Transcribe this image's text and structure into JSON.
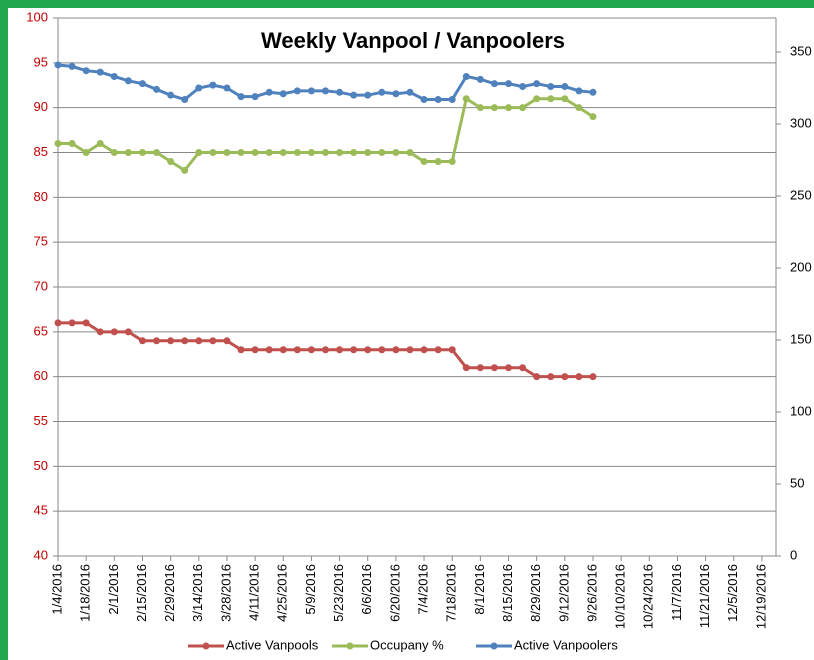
{
  "chart_data": {
    "type": "line",
    "title": "Weekly Vanpool / Vanpoolers",
    "categories": [
      "1/4/2016",
      null,
      "1/18/2016",
      null,
      "2/1/2016",
      null,
      "2/15/2016",
      null,
      "2/29/2016",
      null,
      "3/14/2016",
      null,
      "3/28/2016",
      null,
      "4/11/2016",
      null,
      "4/25/2016",
      null,
      "5/9/2016",
      null,
      "5/23/2016",
      null,
      "6/6/2016",
      null,
      "6/20/2016",
      null,
      "7/4/2016",
      null,
      "7/18/2016",
      null,
      "8/1/2016",
      null,
      "8/15/2016",
      null,
      "8/29/2016",
      null,
      "9/12/2016",
      null,
      "9/26/2016",
      null,
      "10/10/2016",
      null,
      "10/24/2016",
      null,
      "11/7/2016",
      null,
      "11/21/2016",
      null,
      "12/5/2016",
      null,
      "12/19/2016",
      null
    ],
    "series": [
      {
        "name": "Active Vanpools",
        "color": "#c0504d",
        "values": [
          66,
          66,
          66,
          65,
          65,
          65,
          64,
          64,
          64,
          64,
          64,
          64,
          64,
          63,
          63,
          63,
          63,
          63,
          63,
          63,
          63,
          63,
          63,
          63,
          63,
          63,
          63,
          63,
          63,
          61,
          61,
          61,
          61,
          61,
          60,
          60,
          60,
          60,
          60,
          null,
          null,
          null,
          null,
          null,
          null,
          null,
          null,
          null,
          null,
          null,
          null,
          null
        ]
      },
      {
        "name": "Occupany %",
        "color": "#9bbb59",
        "values": [
          86,
          86,
          85,
          86,
          85,
          85,
          85,
          85,
          84,
          83,
          85,
          85,
          85,
          85,
          85,
          85,
          85,
          85,
          85,
          85,
          85,
          85,
          85,
          85,
          85,
          85,
          84,
          84,
          84,
          91,
          90,
          90,
          90,
          90,
          91,
          91,
          91,
          90,
          89,
          null,
          null,
          null,
          null,
          null,
          null,
          null,
          null,
          null,
          null,
          null,
          null,
          null
        ]
      },
      {
        "name": "Active Vanpoolers",
        "color": "#4f81bd",
        "axis": "y2",
        "values": [
          341,
          340,
          337,
          336,
          333,
          330,
          328,
          324,
          320,
          317,
          325,
          327,
          325,
          319,
          319,
          322,
          321,
          323,
          323,
          323,
          322,
          320,
          320,
          322,
          321,
          322,
          317,
          317,
          317,
          333,
          331,
          328,
          328,
          326,
          328,
          326,
          326,
          323,
          322,
          null,
          null,
          null,
          null,
          null,
          null,
          null,
          null,
          null,
          null,
          null,
          null,
          null
        ]
      }
    ],
    "ylim": [
      40,
      100
    ],
    "yticks": [
      40,
      45,
      50,
      55,
      60,
      65,
      70,
      75,
      80,
      85,
      90,
      95,
      100
    ],
    "y2lim": [
      0,
      373.6
    ],
    "y2ticks": [
      0,
      50,
      100,
      150,
      200,
      250,
      300,
      350
    ],
    "grid": true,
    "legend": "bottom",
    "ytick_color": "#c00000"
  }
}
